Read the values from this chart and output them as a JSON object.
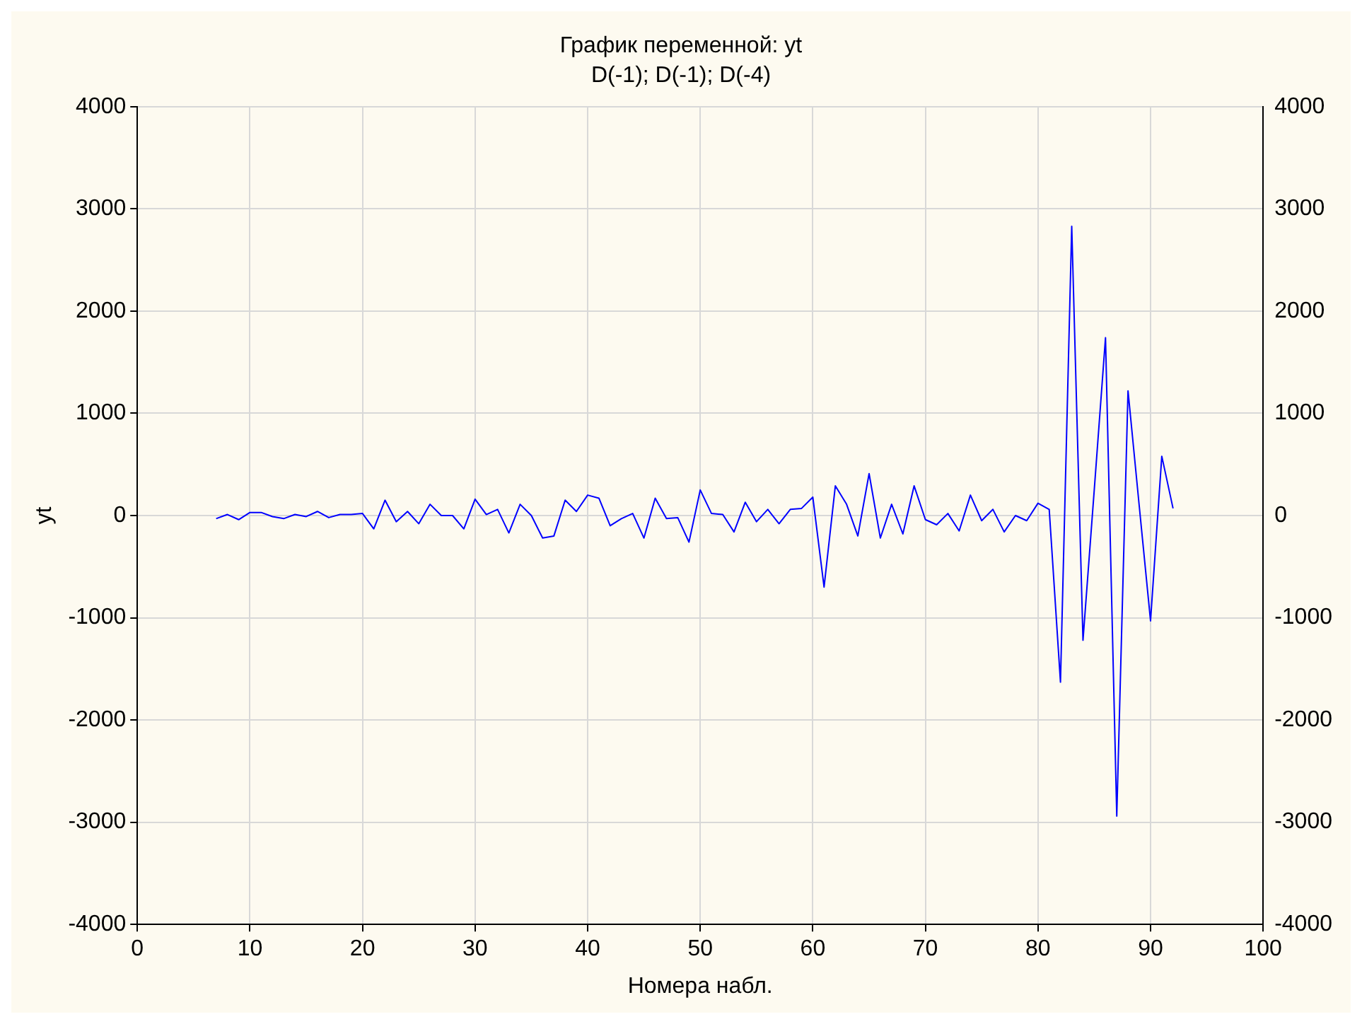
{
  "chart_data": {
    "type": "line",
    "title": "График переменной: yt",
    "subtitle": "D(-1); D(-1); D(-4)",
    "xlabel": "Номера набл.",
    "ylabel": "yt",
    "x": [
      7,
      8,
      9,
      10,
      11,
      12,
      13,
      14,
      15,
      16,
      17,
      18,
      19,
      20,
      21,
      22,
      23,
      24,
      25,
      26,
      27,
      28,
      29,
      30,
      31,
      32,
      33,
      34,
      35,
      36,
      37,
      38,
      39,
      40,
      41,
      42,
      43,
      44,
      45,
      46,
      47,
      48,
      49,
      50,
      51,
      52,
      53,
      54,
      55,
      56,
      57,
      58,
      59,
      60,
      61,
      62,
      63,
      64,
      65,
      66,
      67,
      68,
      69,
      70,
      71,
      72,
      73,
      74,
      75,
      76,
      77,
      78,
      79,
      80,
      81,
      82,
      83,
      84,
      85,
      86,
      87,
      88,
      89,
      90,
      91,
      92
    ],
    "series": [
      {
        "color": "#0000ff",
        "values": [
          -30,
          10,
          -40,
          30,
          30,
          -10,
          -30,
          10,
          -10,
          40,
          -20,
          10,
          10,
          20,
          -130,
          150,
          -60,
          40,
          -80,
          110,
          0,
          0,
          -130,
          160,
          10,
          60,
          -170,
          110,
          0,
          -220,
          -200,
          150,
          40,
          200,
          170,
          -100,
          -30,
          20,
          -220,
          170,
          -30,
          -20,
          -260,
          250,
          20,
          10,
          -160,
          130,
          -60,
          60,
          -80,
          60,
          70,
          180,
          -700,
          290,
          110,
          -200,
          410,
          -220,
          110,
          -180,
          290,
          -40,
          -90,
          20,
          -150,
          200,
          -50,
          60,
          -160,
          0,
          -50,
          120,
          60,
          -1630,
          2830,
          -1220,
          250,
          1740,
          -2940,
          1220,
          90,
          -1030,
          580,
          70
        ]
      }
    ],
    "xlim": [
      0,
      100
    ],
    "xticks": [
      0,
      10,
      20,
      30,
      40,
      50,
      60,
      70,
      80,
      90,
      100
    ],
    "ylim": [
      -4000,
      4000
    ],
    "yticks": [
      -4000,
      -3000,
      -2000,
      -1000,
      0,
      1000,
      2000,
      3000,
      4000
    ],
    "y2lim": [
      -4000,
      4000
    ],
    "y2ticks": [
      -4000,
      -3000,
      -2000,
      -1000,
      0,
      1000,
      2000,
      3000,
      4000
    ],
    "grid": true,
    "legend": false,
    "marker": "none",
    "line_style": "solid"
  }
}
